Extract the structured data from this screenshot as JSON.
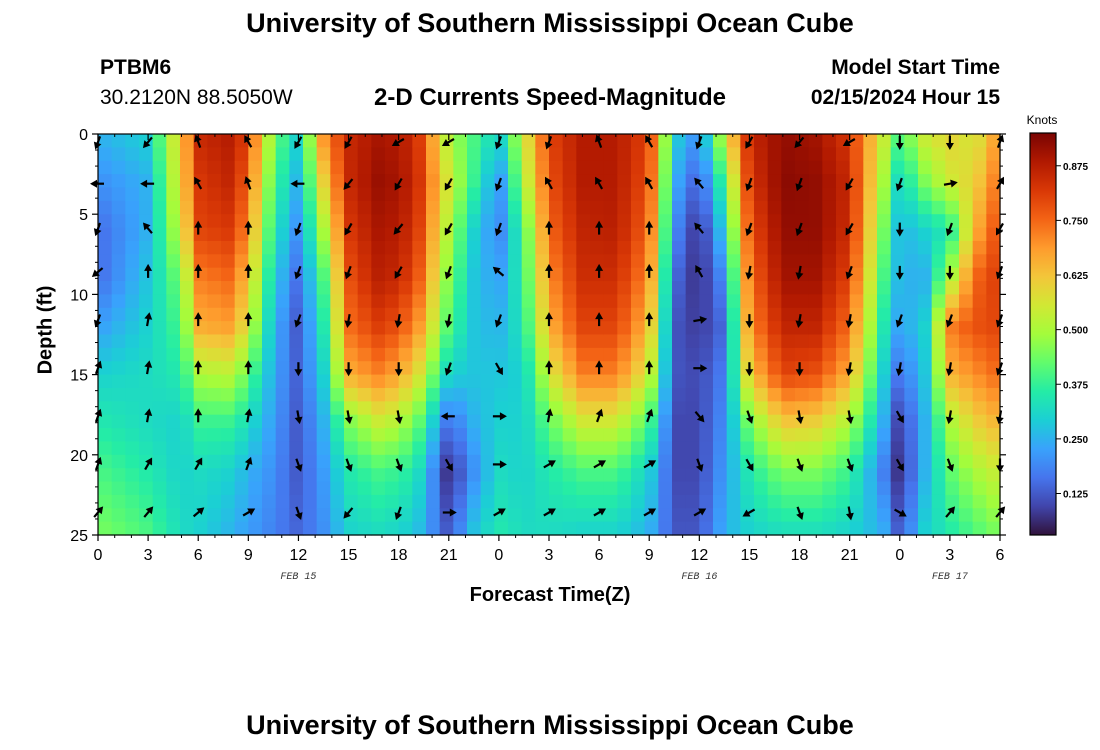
{
  "header": {
    "title": "University of Southern Mississippi Ocean Cube",
    "station_id": "PTBM6",
    "coordinates": "30.2120N  88.5050W",
    "model_start_label": "Model Start Time",
    "model_start_value": "02/15/2024 Hour 15",
    "footer_title": "University of Southern Mississippi Ocean Cube"
  },
  "chart_data": {
    "type": "heatmap",
    "title": "2-D Currents Speed-Magnitude",
    "xlabel": "Forecast Time(Z)",
    "ylabel": "Depth (ft)",
    "x_range": [
      0,
      54
    ],
    "y_range": [
      0,
      25
    ],
    "x_ticks": [
      "0",
      "3",
      "6",
      "9",
      "12",
      "15",
      "18",
      "21",
      "0",
      "3",
      "6",
      "9",
      "12",
      "15",
      "18",
      "21",
      "0",
      "3",
      "6"
    ],
    "y_ticks": [
      "0",
      "5",
      "10",
      "15",
      "20",
      "25"
    ],
    "date_labels": [
      {
        "label": "FEB 15",
        "hour": 12
      },
      {
        "label": "FEB 16",
        "hour": 36
      },
      {
        "label": "FEB 17",
        "hour": 51
      }
    ],
    "colorbar": {
      "title": "Knots",
      "min": 0.03,
      "max": 0.95,
      "tick_values": [
        "0.875",
        "0.750",
        "0.625",
        "0.500",
        "0.375",
        "0.250",
        "0.125"
      ],
      "colors": [
        "#30123b",
        "#4145ab",
        "#4675ed",
        "#39a2fc",
        "#1bcfd4",
        "#24eca6",
        "#61fc6c",
        "#a4fc3b",
        "#d1e834",
        "#f3c63a",
        "#fe9b2d",
        "#f36315",
        "#d93806",
        "#b11901",
        "#7a0402"
      ]
    },
    "speed_columns": {
      "hours": [
        0,
        3,
        5,
        6,
        8,
        9,
        10.5,
        12,
        13.5,
        15,
        17,
        19,
        21,
        22.5,
        24,
        25.5,
        27,
        29,
        31,
        33,
        34.5,
        36,
        37.5,
        39,
        41,
        43,
        45,
        47,
        48,
        49.5,
        51,
        52.5,
        54
      ],
      "depths": [
        0,
        3,
        6,
        9,
        12,
        15,
        18,
        21,
        25
      ],
      "values_knots": [
        [
          0.25,
          0.2,
          0.15,
          0.15,
          0.22,
          0.3,
          0.35,
          0.4,
          0.45
        ],
        [
          0.3,
          0.25,
          0.25,
          0.28,
          0.3,
          0.32,
          0.32,
          0.35,
          0.4
        ],
        [
          0.62,
          0.6,
          0.55,
          0.45,
          0.4,
          0.35,
          0.3,
          0.3,
          0.32
        ],
        [
          0.85,
          0.82,
          0.8,
          0.72,
          0.66,
          0.5,
          0.38,
          0.32,
          0.3
        ],
        [
          0.88,
          0.86,
          0.82,
          0.75,
          0.68,
          0.52,
          0.38,
          0.3,
          0.25
        ],
        [
          0.8,
          0.75,
          0.7,
          0.62,
          0.55,
          0.42,
          0.32,
          0.25,
          0.22
        ],
        [
          0.45,
          0.4,
          0.35,
          0.3,
          0.26,
          0.24,
          0.22,
          0.2,
          0.18
        ],
        [
          0.3,
          0.25,
          0.2,
          0.15,
          0.12,
          0.13,
          0.12,
          0.12,
          0.14
        ],
        [
          0.7,
          0.6,
          0.5,
          0.4,
          0.35,
          0.3,
          0.25,
          0.22,
          0.2
        ],
        [
          0.85,
          0.85,
          0.82,
          0.78,
          0.74,
          0.66,
          0.45,
          0.35,
          0.3
        ],
        [
          0.9,
          0.92,
          0.9,
          0.88,
          0.82,
          0.72,
          0.55,
          0.4,
          0.32
        ],
        [
          0.85,
          0.86,
          0.84,
          0.8,
          0.72,
          0.6,
          0.45,
          0.35,
          0.28
        ],
        [
          0.5,
          0.55,
          0.5,
          0.45,
          0.4,
          0.3,
          0.15,
          0.06,
          0.12
        ],
        [
          0.4,
          0.38,
          0.3,
          0.28,
          0.28,
          0.28,
          0.25,
          0.2,
          0.28
        ],
        [
          0.3,
          0.2,
          0.18,
          0.22,
          0.25,
          0.28,
          0.3,
          0.32,
          0.35
        ],
        [
          0.55,
          0.5,
          0.4,
          0.38,
          0.35,
          0.3,
          0.3,
          0.3,
          0.32
        ],
        [
          0.8,
          0.78,
          0.75,
          0.7,
          0.65,
          0.55,
          0.42,
          0.35,
          0.32
        ],
        [
          0.88,
          0.88,
          0.86,
          0.84,
          0.8,
          0.72,
          0.55,
          0.4,
          0.3
        ],
        [
          0.88,
          0.88,
          0.87,
          0.84,
          0.8,
          0.72,
          0.55,
          0.4,
          0.3
        ],
        [
          0.8,
          0.78,
          0.75,
          0.7,
          0.64,
          0.55,
          0.4,
          0.3,
          0.25
        ],
        [
          0.3,
          0.25,
          0.2,
          0.15,
          0.12,
          0.12,
          0.1,
          0.1,
          0.12
        ],
        [
          0.2,
          0.12,
          0.06,
          0.06,
          0.08,
          0.1,
          0.1,
          0.1,
          0.12
        ],
        [
          0.55,
          0.4,
          0.3,
          0.2,
          0.15,
          0.18,
          0.2,
          0.22,
          0.25
        ],
        [
          0.85,
          0.82,
          0.78,
          0.74,
          0.7,
          0.62,
          0.45,
          0.35,
          0.3
        ],
        [
          0.92,
          0.93,
          0.92,
          0.9,
          0.86,
          0.8,
          0.62,
          0.45,
          0.32
        ],
        [
          0.9,
          0.92,
          0.92,
          0.9,
          0.86,
          0.78,
          0.6,
          0.45,
          0.32
        ],
        [
          0.82,
          0.85,
          0.84,
          0.8,
          0.74,
          0.66,
          0.5,
          0.38,
          0.3
        ],
        [
          0.55,
          0.5,
          0.45,
          0.4,
          0.35,
          0.3,
          0.25,
          0.18,
          0.25
        ],
        [
          0.4,
          0.3,
          0.25,
          0.25,
          0.22,
          0.15,
          0.08,
          0.06,
          0.12
        ],
        [
          0.55,
          0.45,
          0.3,
          0.25,
          0.3,
          0.28,
          0.25,
          0.25,
          0.3
        ],
        [
          0.6,
          0.55,
          0.35,
          0.5,
          0.72,
          0.65,
          0.5,
          0.42,
          0.35
        ],
        [
          0.55,
          0.6,
          0.65,
          0.75,
          0.78,
          0.7,
          0.6,
          0.5,
          0.4
        ],
        [
          0.7,
          0.75,
          0.8,
          0.82,
          0.8,
          0.75,
          0.65,
          0.55,
          0.45
        ]
      ]
    },
    "vector_arrows": {
      "hours": [
        0,
        3,
        6,
        9,
        12,
        15,
        18,
        21,
        24,
        27,
        30,
        33,
        36,
        39,
        42,
        45,
        48,
        51,
        54
      ],
      "depths": [
        0.5,
        3.1,
        5.9,
        8.6,
        11.6,
        14.6,
        17.6,
        20.6,
        23.6
      ],
      "direction_deg_cw_from_north": [
        [
          200,
          220,
          340,
          330,
          210,
          210,
          240,
          240,
          200,
          200,
          340,
          330,
          200,
          210,
          220,
          240,
          180,
          180,
          20
        ],
        [
          270,
          270,
          330,
          340,
          270,
          220,
          210,
          210,
          200,
          330,
          330,
          330,
          320,
          200,
          200,
          210,
          200,
          80,
          30
        ],
        [
          200,
          320,
          0,
          0,
          200,
          210,
          220,
          210,
          200,
          0,
          0,
          0,
          320,
          200,
          200,
          210,
          180,
          200,
          210
        ],
        [
          230,
          0,
          0,
          0,
          200,
          200,
          210,
          200,
          310,
          0,
          0,
          0,
          330,
          190,
          190,
          200,
          180,
          180,
          200
        ],
        [
          200,
          10,
          0,
          0,
          200,
          190,
          190,
          190,
          200,
          0,
          0,
          0,
          80,
          180,
          190,
          190,
          200,
          200,
          200
        ],
        [
          20,
          10,
          0,
          0,
          180,
          180,
          180,
          200,
          150,
          0,
          0,
          0,
          90,
          180,
          180,
          190,
          190,
          190,
          200
        ],
        [
          20,
          10,
          0,
          10,
          170,
          170,
          170,
          270,
          90,
          10,
          20,
          20,
          140,
          160,
          170,
          170,
          150,
          190,
          190
        ],
        [
          20,
          30,
          30,
          20,
          160,
          160,
          160,
          150,
          90,
          60,
          60,
          60,
          160,
          150,
          160,
          160,
          150,
          160,
          180
        ],
        [
          40,
          40,
          50,
          60,
          160,
          220,
          200,
          90,
          60,
          60,
          60,
          60,
          60,
          240,
          160,
          170,
          120,
          40,
          40
        ]
      ]
    }
  }
}
